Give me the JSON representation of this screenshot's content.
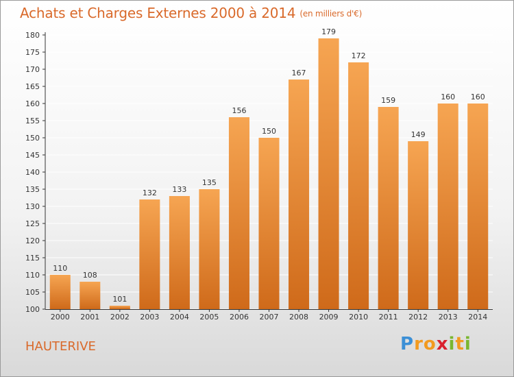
{
  "title": "Achats et Charges Externes 2000 à 2014",
  "subtitle": "(en milliers d'€)",
  "commune": "HAUTERIVE",
  "brand": {
    "letters": [
      "P",
      "r",
      "o",
      "x",
      "i",
      "t",
      "i"
    ],
    "colors": [
      "#3b8fd6",
      "#f29a1f",
      "#f29a1f",
      "#d9202e",
      "#7ab62f",
      "#f29a1f",
      "#7ab62f"
    ]
  },
  "colors": {
    "title": "#d9692a",
    "bar_light": "#f6a552",
    "bar_dark": "#cf6a1a",
    "grid": "#ffffff"
  },
  "chart_data": {
    "type": "bar",
    "categories": [
      "2000",
      "2001",
      "2002",
      "2003",
      "2004",
      "2005",
      "2006",
      "2007",
      "2008",
      "2009",
      "2010",
      "2011",
      "2012",
      "2013",
      "2014"
    ],
    "values": [
      110,
      108,
      101,
      132,
      133,
      135,
      156,
      150,
      167,
      179,
      172,
      159,
      149,
      160,
      160
    ],
    "ylim": [
      100,
      180
    ],
    "yticks": [
      100,
      105,
      110,
      115,
      120,
      125,
      130,
      135,
      140,
      145,
      150,
      155,
      160,
      165,
      170,
      175,
      180
    ],
    "grid": true,
    "data_labels": true
  }
}
